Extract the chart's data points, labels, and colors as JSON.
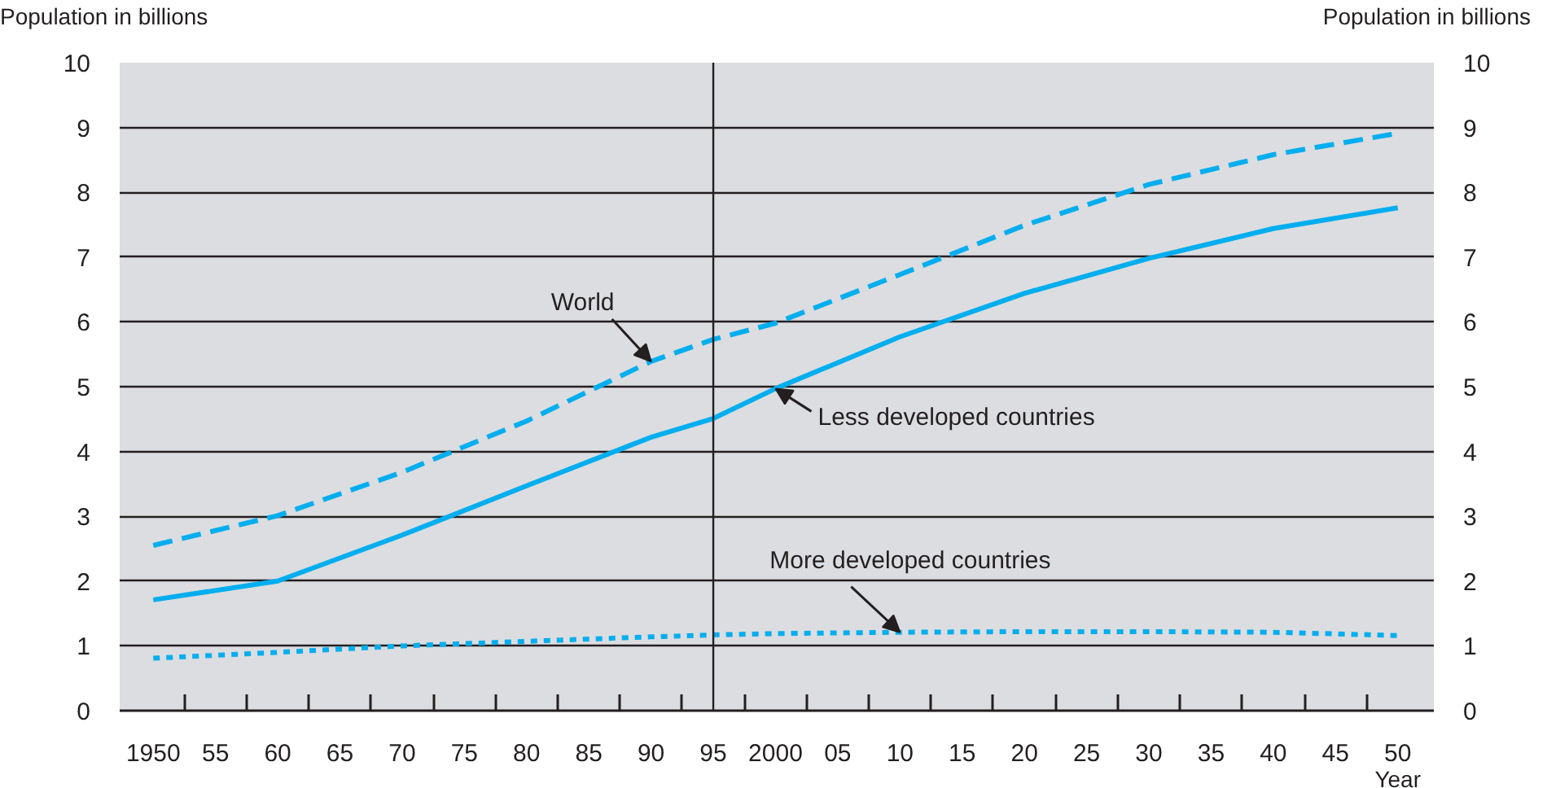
{
  "chart_data": {
    "type": "line",
    "ylabel": "Population in billions",
    "y2label": "Population in billions",
    "xlabel": "Year",
    "x": [
      1950,
      1960,
      1970,
      1980,
      1990,
      1995,
      2000,
      2010,
      2020,
      2030,
      2040,
      2050
    ],
    "series": [
      {
        "name": "World",
        "color": "#00aeef",
        "line_style": "dashed",
        "values": [
          2.55,
          3.01,
          3.68,
          4.47,
          5.39,
          5.73,
          5.98,
          6.73,
          7.49,
          8.12,
          8.58,
          8.91
        ]
      },
      {
        "name": "Less developed countries",
        "color": "#00aeef",
        "line_style": "solid",
        "values": [
          1.71,
          2.0,
          2.71,
          3.47,
          4.22,
          4.51,
          4.97,
          5.77,
          6.44,
          6.98,
          7.44,
          7.76
        ]
      },
      {
        "name": "More developed countries",
        "color": "#00aeef",
        "line_style": "dotted",
        "values": [
          0.81,
          0.9,
          1.0,
          1.07,
          1.14,
          1.17,
          1.19,
          1.21,
          1.22,
          1.22,
          1.21,
          1.16
        ]
      }
    ],
    "xlim": [
      1947.3,
      2052.9
    ],
    "xticks": [
      {
        "value": 1950,
        "label": "1950"
      },
      {
        "value": 1952.5,
        "label": null
      },
      {
        "value": 1955,
        "label": "55"
      },
      {
        "value": 1957.5,
        "label": null
      },
      {
        "value": 1960,
        "label": "60"
      },
      {
        "value": 1962.5,
        "label": null
      },
      {
        "value": 1965,
        "label": "65"
      },
      {
        "value": 1967.5,
        "label": null
      },
      {
        "value": 1970,
        "label": "70"
      },
      {
        "value": 1972.5,
        "label": null
      },
      {
        "value": 1975,
        "label": "75"
      },
      {
        "value": 1977.5,
        "label": null
      },
      {
        "value": 1980,
        "label": "80"
      },
      {
        "value": 1982.5,
        "label": null
      },
      {
        "value": 1985,
        "label": "85"
      },
      {
        "value": 1987.5,
        "label": null
      },
      {
        "value": 1990,
        "label": "90"
      },
      {
        "value": 1992.5,
        "label": null
      },
      {
        "value": 1995,
        "label": "95"
      },
      {
        "value": 1997.5,
        "label": null
      },
      {
        "value": 2000,
        "label": "2000"
      },
      {
        "value": 2002.5,
        "label": null
      },
      {
        "value": 2005,
        "label": "05"
      },
      {
        "value": 2007.5,
        "label": null
      },
      {
        "value": 2010,
        "label": "10"
      },
      {
        "value": 2012.5,
        "label": null
      },
      {
        "value": 2015,
        "label": "15"
      },
      {
        "value": 2017.5,
        "label": null
      },
      {
        "value": 2020,
        "label": "20"
      },
      {
        "value": 2022.5,
        "label": null
      },
      {
        "value": 2025,
        "label": "25"
      },
      {
        "value": 2027.5,
        "label": null
      },
      {
        "value": 2030,
        "label": "30"
      },
      {
        "value": 2032.5,
        "label": null
      },
      {
        "value": 2035,
        "label": "35"
      },
      {
        "value": 2037.5,
        "label": null
      },
      {
        "value": 2040,
        "label": "40"
      },
      {
        "value": 2042.5,
        "label": null
      },
      {
        "value": 2045,
        "label": "45"
      },
      {
        "value": 2047.5,
        "label": null
      },
      {
        "value": 2050,
        "label": "50"
      }
    ],
    "ylim": [
      0,
      10
    ],
    "yticks": [
      0,
      1,
      2,
      3,
      4,
      5,
      6,
      7,
      8,
      9,
      10
    ],
    "y2lim": [
      0,
      10
    ],
    "y2ticks": [
      0,
      1,
      2,
      3,
      4,
      5,
      6,
      7,
      8,
      9,
      10
    ],
    "ref_lines": [
      {
        "axis": "x",
        "value": 1995,
        "label": null,
        "color": "#231f20"
      }
    ],
    "grid": "y",
    "legend": false,
    "marker": "none"
  }
}
